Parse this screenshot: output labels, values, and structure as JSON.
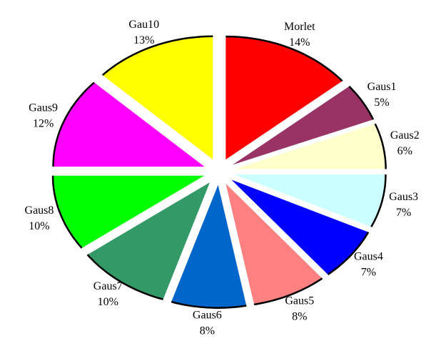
{
  "chart_data": {
    "type": "pie",
    "categories": [
      "Morlet",
      "Gaus1",
      "Gaus2",
      "Gaus3",
      "Gaus4",
      "Gaus5",
      "Gaus6",
      "Gaus7",
      "Gaus8",
      "Gaus9",
      "Gau10"
    ],
    "values": [
      14,
      5,
      6,
      7,
      7,
      8,
      8,
      10,
      10,
      12,
      13
    ],
    "value_labels": [
      "14%",
      "5%",
      "6%",
      "7%",
      "7%",
      "8%",
      "8%",
      "10%",
      "10%",
      "12%",
      "13%"
    ],
    "colors": [
      "#ff0000",
      "#993366",
      "#ffffcc",
      "#ccffff",
      "#0000ff",
      "#ff8080",
      "#0066cc",
      "#339966",
      "#00ff00",
      "#ff00ff",
      "#ffff00"
    ]
  }
}
